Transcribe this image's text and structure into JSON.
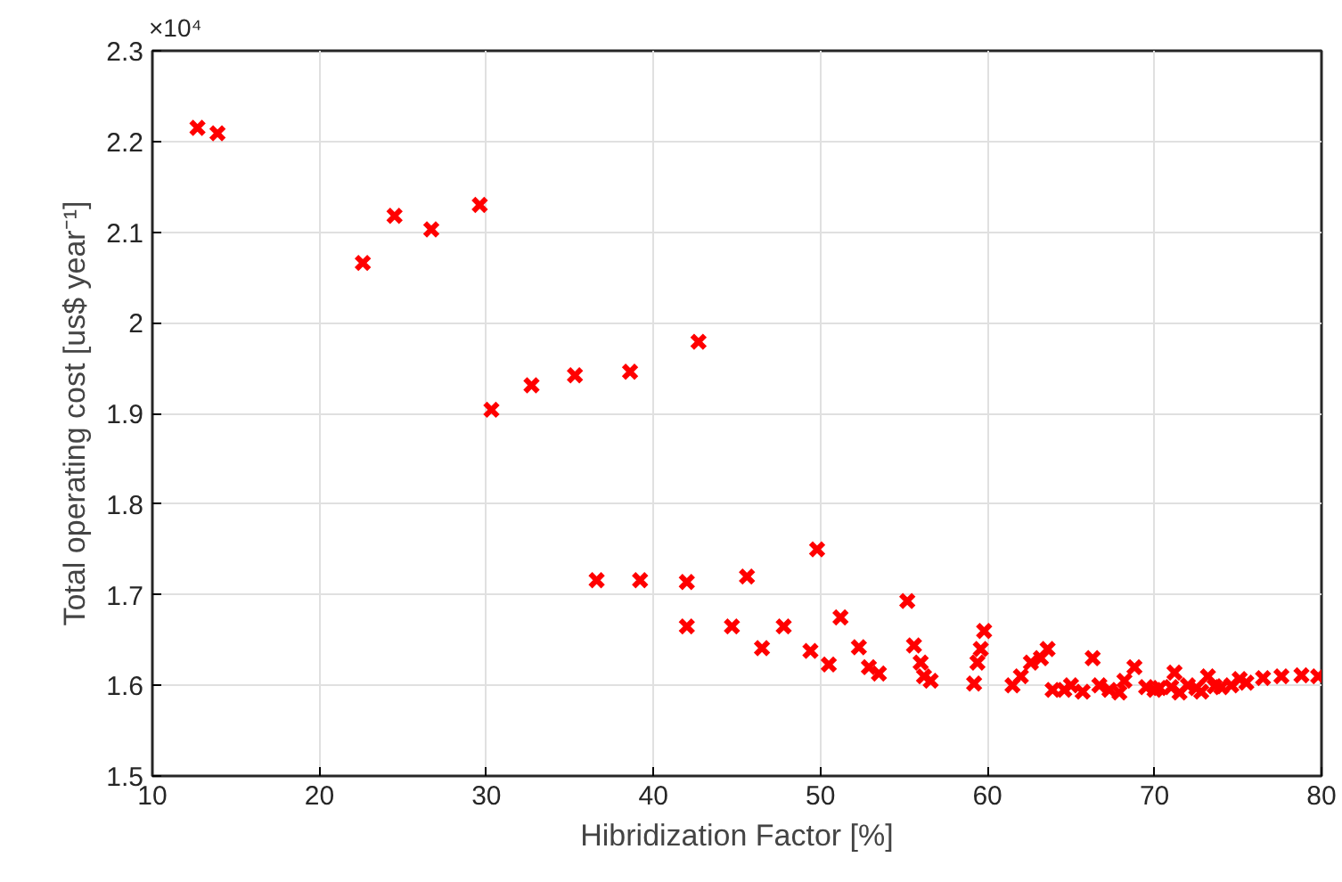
{
  "chart_data": {
    "type": "scatter",
    "xlabel": "Hibridization Factor [%]",
    "ylabel": "Total operating cost [us$ year⁻¹]",
    "annotations": [
      "×10⁴"
    ],
    "marker": "cross",
    "grid": true,
    "xlim": [
      10,
      80
    ],
    "xticks": [
      10,
      20,
      30,
      40,
      50,
      60,
      70,
      80
    ],
    "ylim": [
      1.5,
      2.3
    ],
    "yticks": [
      1.5,
      1.6,
      1.7,
      1.8,
      1.9,
      2,
      2.1,
      2.2,
      2.3
    ],
    "series": [
      {
        "color": "#ff0000",
        "x": [
          12.7,
          13.9,
          22.6,
          24.5,
          26.7,
          29.6,
          30.3,
          32.7,
          35.3,
          38.6,
          42.7,
          36.6,
          39.2,
          42.0,
          42.0,
          44.7,
          45.6,
          46.5,
          47.8,
          49.4,
          49.8,
          50.5,
          51.2,
          52.3,
          52.9,
          53.5,
          55.2,
          55.6,
          56.0,
          56.2,
          56.6,
          59.2,
          59.4,
          59.6,
          59.8,
          61.5,
          62.0,
          62.6,
          63.2,
          63.6,
          63.9,
          65.0,
          66.3,
          66.7,
          67.3,
          68.8,
          69.5,
          70.3,
          71.2,
          71.5,
          72.5,
          73.2,
          73.6,
          74.6,
          75.1,
          76.5,
          77.6,
          78.8,
          79.8,
          64.6,
          67.9,
          70.0,
          72.0,
          74.0,
          75.5,
          65.7,
          68.2,
          71.0,
          72.8
        ],
        "values": [
          2.215,
          2.209,
          2.066,
          2.118,
          2.103,
          2.13,
          1.904,
          1.931,
          1.942,
          1.946,
          1.979,
          1.716,
          1.716,
          1.714,
          1.665,
          1.665,
          1.72,
          1.641,
          1.665,
          1.638,
          1.75,
          1.623,
          1.675,
          1.642,
          1.62,
          1.613,
          1.693,
          1.644,
          1.625,
          1.61,
          1.605,
          1.602,
          1.625,
          1.64,
          1.66,
          1.6,
          1.61,
          1.625,
          1.63,
          1.64,
          1.595,
          1.6,
          1.63,
          1.6,
          1.595,
          1.62,
          1.598,
          1.597,
          1.614,
          1.592,
          1.597,
          1.61,
          1.599,
          1.6,
          1.607,
          1.608,
          1.61,
          1.611,
          1.61,
          1.595,
          1.592,
          1.595,
          1.6,
          1.598,
          1.603,
          1.593,
          1.605,
          1.598,
          1.593
        ]
      }
    ]
  }
}
